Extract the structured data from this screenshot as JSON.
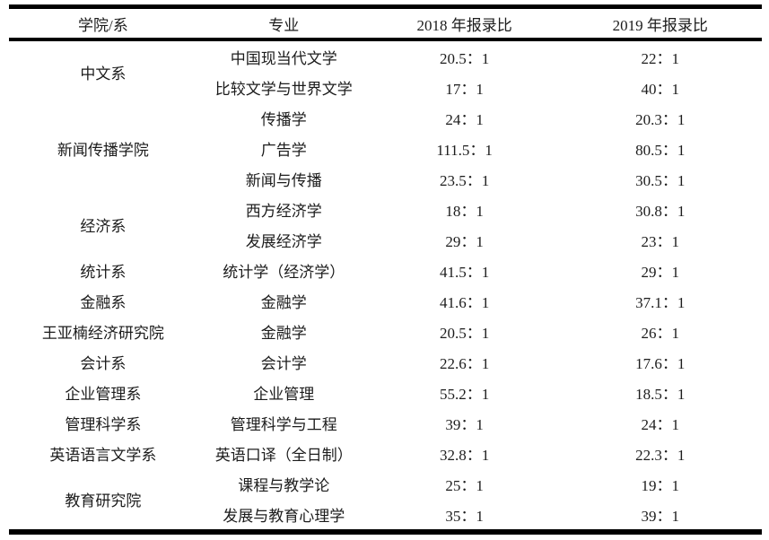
{
  "table": {
    "headers": [
      "学院/系",
      "专业",
      "2018 年报录比",
      "2019 年报录比"
    ],
    "groups": [
      {
        "department": "中文系",
        "rows": [
          {
            "major": "中国现当代文学",
            "ratio_2018": "20.5：1",
            "ratio_2019": "22：1"
          },
          {
            "major": "比较文学与世界文学",
            "ratio_2018": "17：1",
            "ratio_2019": "40：1"
          }
        ]
      },
      {
        "department": "新闻传播学院",
        "rows": [
          {
            "major": "传播学",
            "ratio_2018": "24：1",
            "ratio_2019": "20.3：1"
          },
          {
            "major": "广告学",
            "ratio_2018": "111.5：1",
            "ratio_2019": "80.5：1"
          },
          {
            "major": "新闻与传播",
            "ratio_2018": "23.5：1",
            "ratio_2019": "30.5：1"
          }
        ]
      },
      {
        "department": "经济系",
        "rows": [
          {
            "major": "西方经济学",
            "ratio_2018": "18：1",
            "ratio_2019": "30.8：1"
          },
          {
            "major": "发展经济学",
            "ratio_2018": "29：1",
            "ratio_2019": "23：1"
          }
        ]
      },
      {
        "department": "统计系",
        "rows": [
          {
            "major": "统计学（经济学）",
            "ratio_2018": "41.5：1",
            "ratio_2019": "29：1"
          }
        ]
      },
      {
        "department": "金融系",
        "rows": [
          {
            "major": "金融学",
            "ratio_2018": "41.6：1",
            "ratio_2019": "37.1：1"
          }
        ]
      },
      {
        "department": "王亚楠经济研究院",
        "rows": [
          {
            "major": "金融学",
            "ratio_2018": "20.5：1",
            "ratio_2019": "26：1"
          }
        ]
      },
      {
        "department": "会计系",
        "rows": [
          {
            "major": "会计学",
            "ratio_2018": "22.6：1",
            "ratio_2019": "17.6：1"
          }
        ]
      },
      {
        "department": "企业管理系",
        "rows": [
          {
            "major": "企业管理",
            "ratio_2018": "55.2：1",
            "ratio_2019": "18.5：1"
          }
        ]
      },
      {
        "department": "管理科学系",
        "rows": [
          {
            "major": "管理科学与工程",
            "ratio_2018": "39：1",
            "ratio_2019": "24：1"
          }
        ]
      },
      {
        "department": "英语语言文学系",
        "rows": [
          {
            "major": "英语口译（全日制）",
            "ratio_2018": "32.8：1",
            "ratio_2019": "22.3：1"
          }
        ]
      },
      {
        "department": "教育研究院",
        "rows": [
          {
            "major": "课程与教学论",
            "ratio_2018": "25：1",
            "ratio_2019": "19：1"
          },
          {
            "major": "发展与教育心理学",
            "ratio_2018": "35：1",
            "ratio_2019": "39：1"
          }
        ]
      }
    ]
  },
  "colors": {
    "border": "#000000",
    "text": "#1c1c1c",
    "background": "#ffffff"
  }
}
